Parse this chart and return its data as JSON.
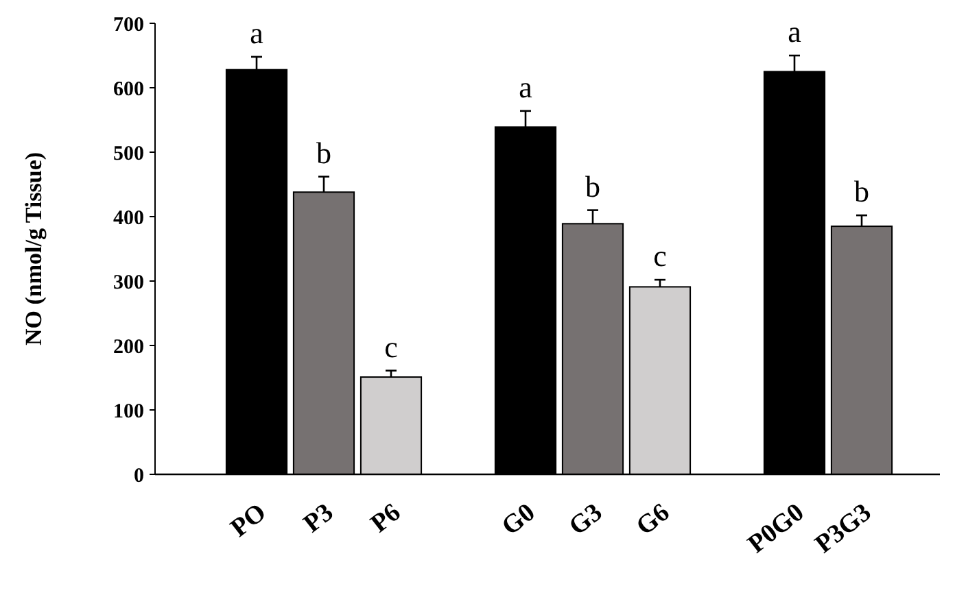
{
  "chart_data": {
    "type": "bar",
    "ylabel": "NO (nmol/g Tissue)",
    "categories": [
      "PO",
      "P3",
      "P6",
      null,
      "G0",
      "G3",
      "G6",
      null,
      "P0G0",
      "P3G3"
    ],
    "values": [
      628,
      438,
      151,
      null,
      539,
      389,
      291,
      null,
      625,
      385
    ],
    "colors": [
      "#000000",
      "#767171",
      "#d0cece",
      null,
      "#000000",
      "#767171",
      "#d0cece",
      null,
      "#000000",
      "#767171"
    ],
    "errors": [
      20,
      24,
      10,
      null,
      25,
      21,
      11,
      null,
      25,
      17
    ],
    "ylim": [
      0,
      700
    ],
    "yticks": [
      0,
      100,
      200,
      300,
      400,
      500,
      600,
      700
    ],
    "grid": false,
    "annotations": [
      "a",
      "b",
      "c",
      "a",
      "b",
      "c",
      "a",
      "b"
    ]
  }
}
